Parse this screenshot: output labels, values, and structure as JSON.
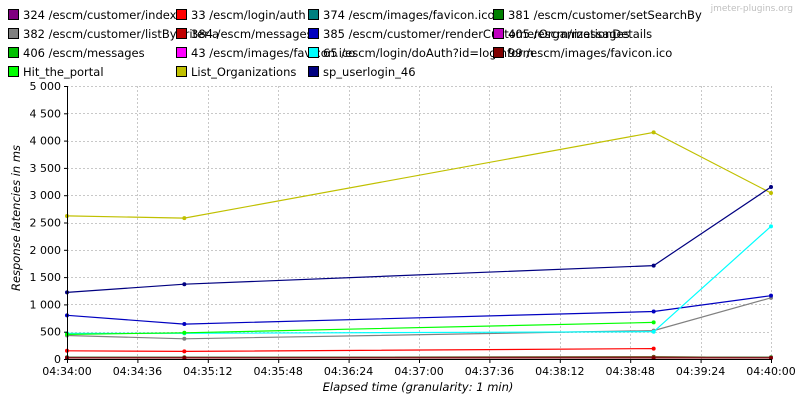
{
  "watermark": "jmeter-plugins.org",
  "chart_data": {
    "type": "line",
    "title": "",
    "xlabel": "Elapsed time (granularity: 1 min)",
    "ylabel": "Response latencies in ms",
    "ylim": [
      0,
      5000
    ],
    "yticks": [
      0,
      500,
      1000,
      1500,
      2000,
      2500,
      3000,
      3500,
      4000,
      4500,
      5000
    ],
    "ytick_labels": [
      "0",
      "500",
      "1 000",
      "1 500",
      "2 000",
      "2 500",
      "3 000",
      "3 500",
      "4 000",
      "4 500",
      "5 000"
    ],
    "xlim": [
      "04:34:00",
      "04:40:00"
    ],
    "xtick_labels": [
      "04:34:00",
      "04:34:36",
      "04:35:12",
      "04:35:48",
      "04:36:24",
      "04:37:00",
      "04:37:36",
      "04:38:12",
      "04:38:48",
      "04:39:24",
      "04:40:00"
    ],
    "grid": true,
    "legend_position": "top",
    "series": [
      {
        "name": "324 /escm/customer/index",
        "color": "#800080",
        "points": [
          [
            "04:34:00",
            20
          ],
          [
            "04:35:00",
            20
          ],
          [
            "04:39:00",
            20
          ],
          [
            "04:40:00",
            20
          ]
        ]
      },
      {
        "name": "33 /escm/login/auth",
        "color": "#ff0000",
        "points": [
          [
            "04:34:00",
            150
          ],
          [
            "04:35:00",
            140
          ],
          [
            "04:39:00",
            190
          ]
        ]
      },
      {
        "name": "374 /escm/images/favicon.ico",
        "color": "#008080",
        "points": [
          [
            "04:34:00",
            20
          ],
          [
            "04:35:00",
            20
          ],
          [
            "04:39:00",
            20
          ],
          [
            "04:40:00",
            20
          ]
        ]
      },
      {
        "name": "381 /escm/customer/setSearchBy",
        "color": "#008000",
        "points": [
          [
            "04:34:00",
            30
          ],
          [
            "04:35:00",
            30
          ],
          [
            "04:39:00",
            40
          ],
          [
            "04:40:00",
            30
          ]
        ]
      },
      {
        "name": "382 /escm/customer/listByCriteria",
        "color": "#808080",
        "points": [
          [
            "04:34:00",
            430
          ],
          [
            "04:35:00",
            370
          ],
          [
            "04:39:00",
            520
          ],
          [
            "04:40:00",
            1120
          ]
        ]
      },
      {
        "name": "384 /escm/messages",
        "color": "#c00000",
        "points": [
          [
            "04:34:00",
            30
          ],
          [
            "04:35:00",
            30
          ],
          [
            "04:39:00",
            40
          ],
          [
            "04:40:00",
            30
          ]
        ]
      },
      {
        "name": "385 /escm/customer/renderCustomerOrganizationDetails",
        "color": "#0000c0",
        "points": [
          [
            "04:34:00",
            800
          ],
          [
            "04:35:00",
            640
          ],
          [
            "04:39:00",
            870
          ],
          [
            "04:40:00",
            1160
          ]
        ]
      },
      {
        "name": "405 /escm/messages",
        "color": "#c000c0",
        "points": [
          [
            "04:34:00",
            30
          ],
          [
            "04:35:00",
            30
          ],
          [
            "04:39:00",
            30
          ],
          [
            "04:40:00",
            30
          ]
        ]
      },
      {
        "name": "406 /escm/messages",
        "color": "#00c000",
        "points": [
          [
            "04:34:00",
            30
          ],
          [
            "04:35:00",
            30
          ],
          [
            "04:39:00",
            30
          ],
          [
            "04:40:00",
            30
          ]
        ]
      },
      {
        "name": "43 /escm/images/favicon.ico",
        "color": "#ff00ff",
        "points": [
          [
            "04:34:00",
            20
          ],
          [
            "04:35:00",
            20
          ],
          [
            "04:39:00",
            20
          ],
          [
            "04:40:00",
            20
          ]
        ]
      },
      {
        "name": "65 /escm/login/doAuth?id=loginform",
        "color": "#00ffff",
        "points": [
          [
            "04:34:00",
            470
          ],
          [
            "04:35:00",
            470
          ],
          [
            "04:39:00",
            500
          ],
          [
            "04:40:00",
            2430
          ]
        ]
      },
      {
        "name": "99 /escm/images/favicon.ico",
        "color": "#800000",
        "points": [
          [
            "04:34:00",
            20
          ],
          [
            "04:35:00",
            20
          ],
          [
            "04:39:00",
            20
          ],
          [
            "04:40:00",
            20
          ]
        ]
      },
      {
        "name": "Hit_the_portal",
        "color": "#00ff00",
        "points": [
          [
            "04:34:00",
            450
          ],
          [
            "04:35:00",
            480
          ],
          [
            "04:39:00",
            670
          ]
        ]
      },
      {
        "name": "List_Organizations",
        "color": "#c0c000",
        "points": [
          [
            "04:34:00",
            2620
          ],
          [
            "04:35:00",
            2580
          ],
          [
            "04:39:00",
            4150
          ],
          [
            "04:40:00",
            3040
          ]
        ]
      },
      {
        "name": "sp_userlogin_46",
        "color": "#000080",
        "points": [
          [
            "04:34:00",
            1220
          ],
          [
            "04:35:00",
            1370
          ],
          [
            "04:39:00",
            1710
          ],
          [
            "04:40:00",
            3150
          ]
        ]
      }
    ]
  }
}
